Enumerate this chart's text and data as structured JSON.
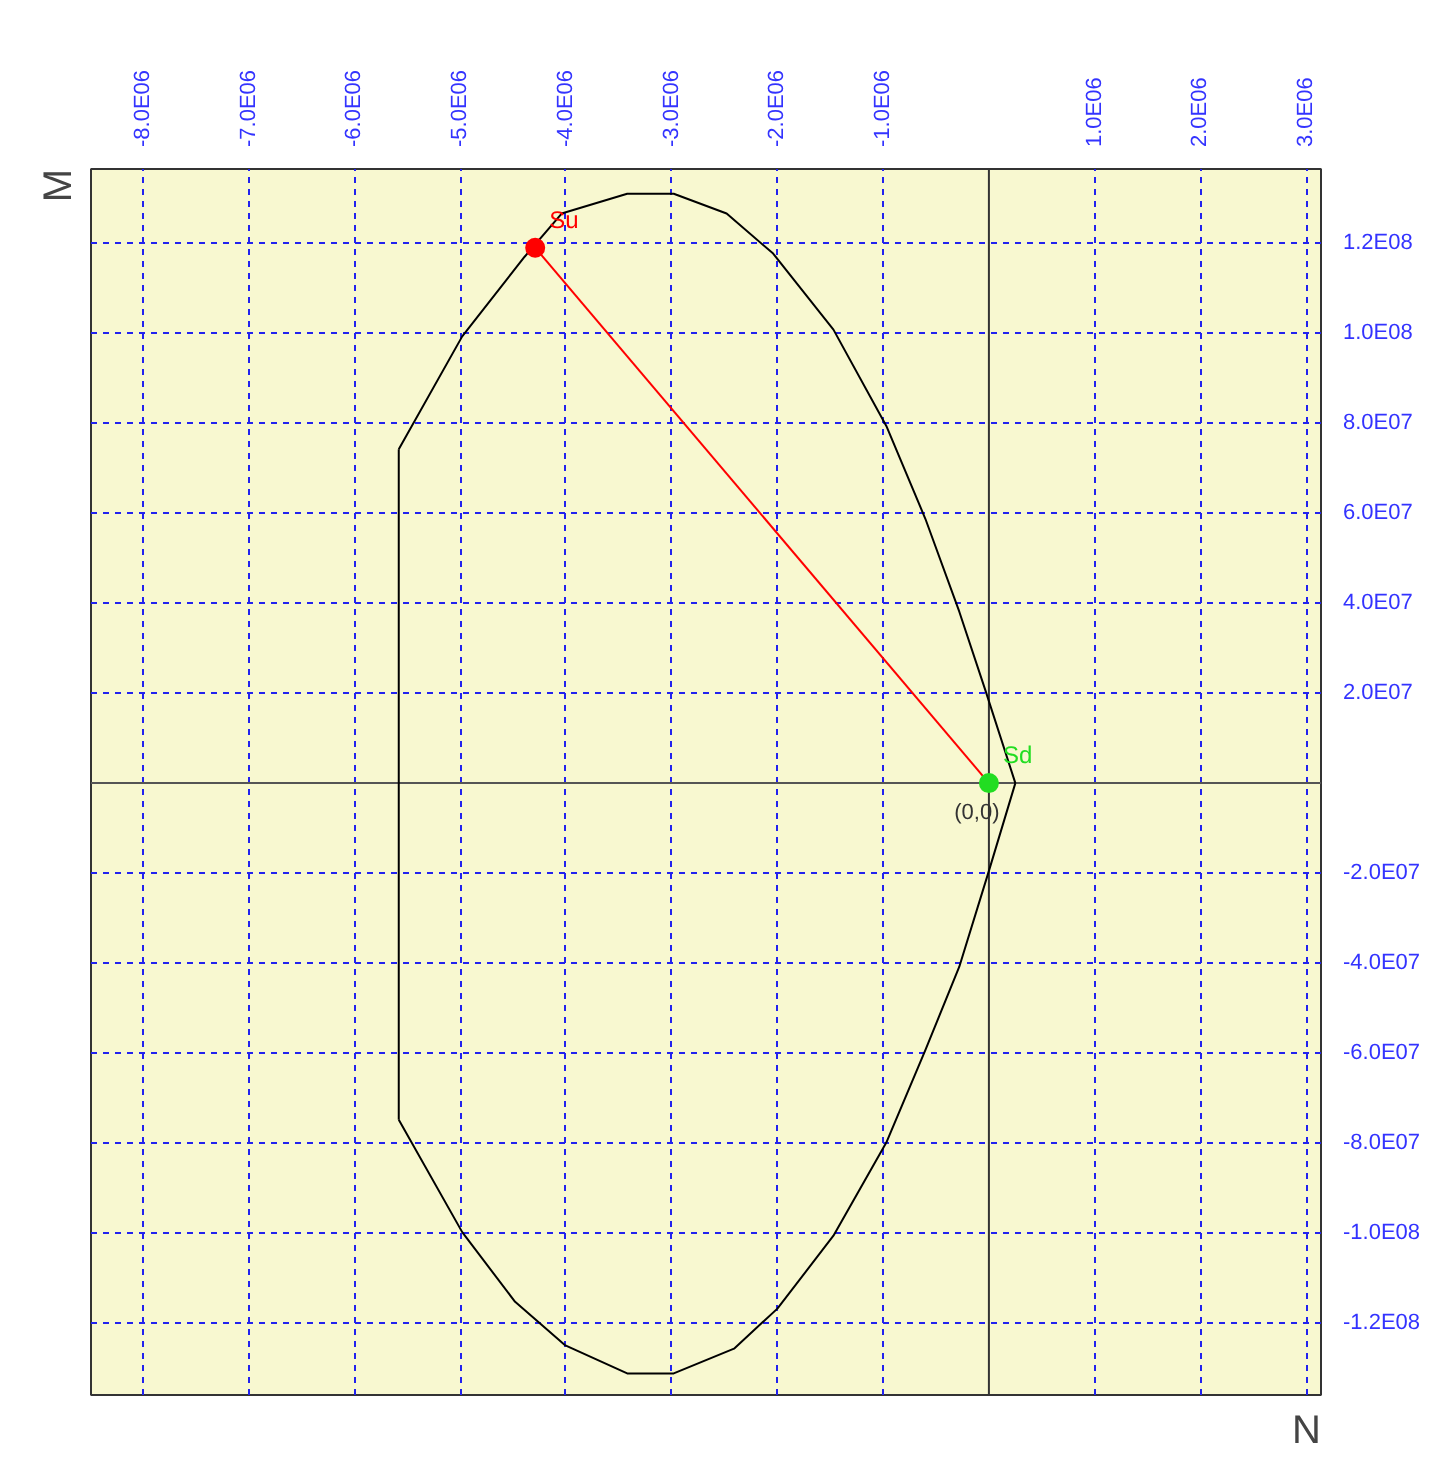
{
  "chart_data": {
    "type": "line",
    "xlabel": "N",
    "ylabel": "M",
    "xlim": [
      -8490000,
      3140000
    ],
    "ylim": [
      -136000000,
      136500000
    ],
    "xticks": [
      {
        "value": -8000000,
        "label": "-8.0E06"
      },
      {
        "value": -7000000,
        "label": "-7.0E06"
      },
      {
        "value": -6000000,
        "label": "-6.0E06"
      },
      {
        "value": -5000000,
        "label": "-5.0E06"
      },
      {
        "value": -4000000,
        "label": "-4.0E06"
      },
      {
        "value": -3000000,
        "label": "-3.0E06"
      },
      {
        "value": -2000000,
        "label": "-2.0E06"
      },
      {
        "value": -1000000,
        "label": "-1.0E06"
      },
      {
        "value": 1000000,
        "label": "1.0E06"
      },
      {
        "value": 2000000,
        "label": "2.0E06"
      },
      {
        "value": 3000000,
        "label": "3.0E06"
      }
    ],
    "yticks": [
      {
        "value": 120000000,
        "label": "1.2E08"
      },
      {
        "value": 100000000,
        "label": "1.0E08"
      },
      {
        "value": 80000000,
        "label": "8.0E07"
      },
      {
        "value": 60000000,
        "label": "6.0E07"
      },
      {
        "value": 40000000,
        "label": "4.0E07"
      },
      {
        "value": 20000000,
        "label": "2.0E07"
      },
      {
        "value": -20000000,
        "label": "-2.0E07"
      },
      {
        "value": -40000000,
        "label": "-4.0E07"
      },
      {
        "value": -60000000,
        "label": "-6.0E07"
      },
      {
        "value": -80000000,
        "label": "-8.0E07"
      },
      {
        "value": -100000000,
        "label": "-1.0E08"
      },
      {
        "value": -120000000,
        "label": "-1.2E08"
      }
    ],
    "grid": true,
    "line_style": "solid",
    "ref_lines": [
      {
        "axis": "x",
        "value": 0,
        "color": "#333333"
      },
      {
        "axis": "y",
        "value": 0,
        "color": "#555555"
      }
    ],
    "annotations": [
      {
        "text": "(0,0)",
        "x": 0,
        "y": 0
      }
    ],
    "series": [
      {
        "color": "#000000",
        "x": [
          -5580000,
          -4980000,
          -4390000,
          -4040000,
          -3420000,
          -2980000,
          -2480000,
          -2040000,
          -1470000,
          -970000,
          -600000,
          -280000,
          -30000,
          250000
        ],
        "values": [
          74200000,
          99300000,
          117000000,
          126600000,
          131000000,
          131000000,
          126600000,
          117700000,
          100800000,
          79400000,
          58700000,
          38100000,
          20400000,
          0
        ]
      },
      {
        "color": "#000000",
        "x": [
          250000,
          0,
          -280000,
          -600000,
          -970000,
          -1470000,
          -2000000,
          -2410000,
          -2980000,
          -3420000,
          -4010000,
          -4480000,
          -4980000,
          -5580000
        ],
        "values": [
          0,
          -19500000,
          -40800000,
          -59300000,
          -79900000,
          -100600000,
          -116800000,
          -125700000,
          -131200000,
          -131200000,
          -124900000,
          -115300000,
          -99800000,
          -74800000
        ]
      },
      {
        "color": "#000000",
        "x": [
          -5580000,
          -5580000
        ],
        "values": [
          -74800000,
          74200000
        ]
      },
      {
        "color": "#ff0000",
        "x": [
          -4290000,
          0
        ],
        "values": [
          119000000,
          0
        ]
      },
      {
        "type": "scatter",
        "name": "Su",
        "color": "#ff0000",
        "marker": "circle",
        "x": [
          -4290000
        ],
        "values": [
          119000000
        ]
      },
      {
        "type": "scatter",
        "name": "Sd",
        "color": "#22dd22",
        "marker": "circle",
        "x": [
          0
        ],
        "values": [
          0
        ]
      }
    ]
  }
}
